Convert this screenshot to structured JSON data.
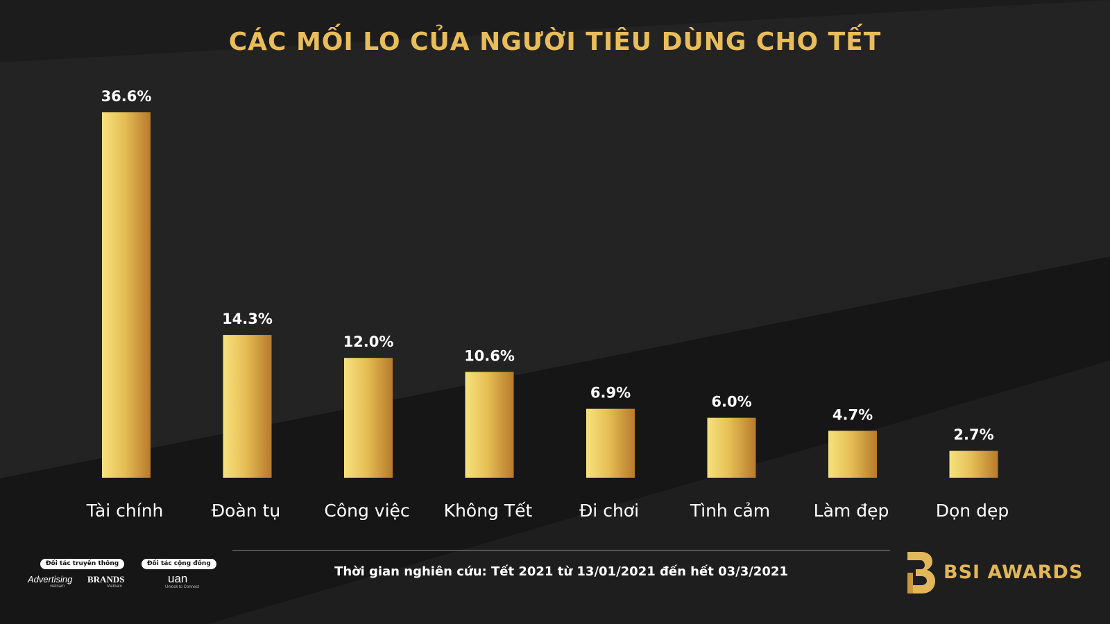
{
  "title": "CÁC MỐI LO CỦA NGƯỜI TIÊU DÙNG CHO TẾT",
  "chart_data": {
    "type": "bar",
    "categories": [
      "Tài chính",
      "Đoàn tụ",
      "Công việc",
      "Không Tết",
      "Đi chơi",
      "Tình cảm",
      "Làm đẹp",
      "Dọn dẹp"
    ],
    "values": [
      36.6,
      14.3,
      12.0,
      10.6,
      6.9,
      6.0,
      4.7,
      2.7
    ],
    "data_labels": [
      "36.6%",
      "14.3%",
      "12.0%",
      "10.6%",
      "6.9%",
      "6.0%",
      "4.7%",
      "2.7%"
    ],
    "title": "CÁC MỐI LO CỦA NGƯỜI TIÊU DÙNG CHO TẾT",
    "xlabel": "",
    "ylabel": "",
    "ylim": [
      0,
      36.6
    ],
    "grid": false,
    "colors": {
      "bar_light": "#f7e27e",
      "bar_dark": "#b87a2c",
      "label": "#ffffff",
      "title": "#e9bd5a"
    }
  },
  "footnote": "Thời gian nghiên cứu:  Tết 2021 từ 13/01/2021 đến hết 03/3/2021",
  "partners": {
    "media_label": "Đối tác truyền thông",
    "community_label": "Đối tác cộng đồng",
    "logo1": "Advertising",
    "logo1_sub": "vietnam",
    "logo2": "BRANDS",
    "logo2_sub": "Vietnam",
    "logo3": "uan",
    "logo3_sub": "Unlock to Connect"
  },
  "brand": {
    "name": "BSI AWARDS",
    "icon": "bsi-logo-icon",
    "color": "#e2b75a"
  },
  "colors": {
    "background": "#1c1c1c",
    "accent": "#e9bd5a"
  }
}
